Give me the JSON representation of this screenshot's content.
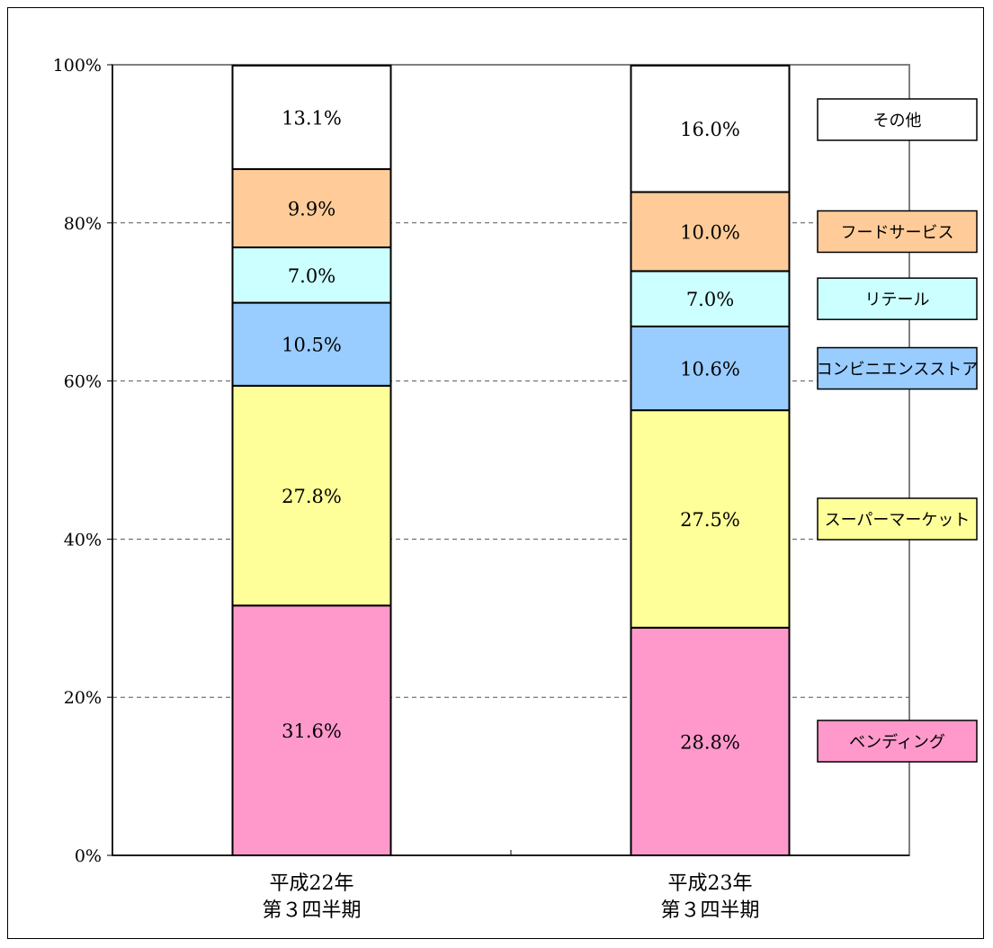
{
  "chart_data": {
    "type": "bar",
    "stacked": true,
    "percent_stacked": true,
    "categories": [
      [
        "平成22年",
        "第３四半期"
      ],
      [
        "平成23年",
        "第３四半期"
      ]
    ],
    "ylim": [
      0,
      100
    ],
    "yticks": [
      "0%",
      "20%",
      "40%",
      "60%",
      "80%",
      "100%"
    ],
    "grid": "horizontal-dashed",
    "legend_placement": "right",
    "series": [
      {
        "name": "ベンディング",
        "values": [
          31.6,
          28.8
        ],
        "labels": [
          "31.6%",
          "28.8%"
        ],
        "color": "#ff99cc"
      },
      {
        "name": "スーパーマーケット",
        "values": [
          27.8,
          27.5
        ],
        "labels": [
          "27.8%",
          "27.5%"
        ],
        "color": "#ffff99"
      },
      {
        "name": "コンビニエンスストア",
        "values": [
          10.5,
          10.6
        ],
        "labels": [
          "10.5%",
          "10.6%"
        ],
        "color": "#99ccff"
      },
      {
        "name": "リテール",
        "values": [
          7.0,
          7.0
        ],
        "labels": [
          "7.0%",
          "7.0%"
        ],
        "color": "#ccffff"
      },
      {
        "name": "フードサービス",
        "values": [
          9.9,
          10.0
        ],
        "labels": [
          "9.9%",
          "10.0%"
        ],
        "color": "#ffcc99"
      },
      {
        "name": "その他",
        "values": [
          13.1,
          16.0
        ],
        "labels": [
          "13.1%",
          "16.0%"
        ],
        "color": "#ffffff"
      }
    ]
  }
}
